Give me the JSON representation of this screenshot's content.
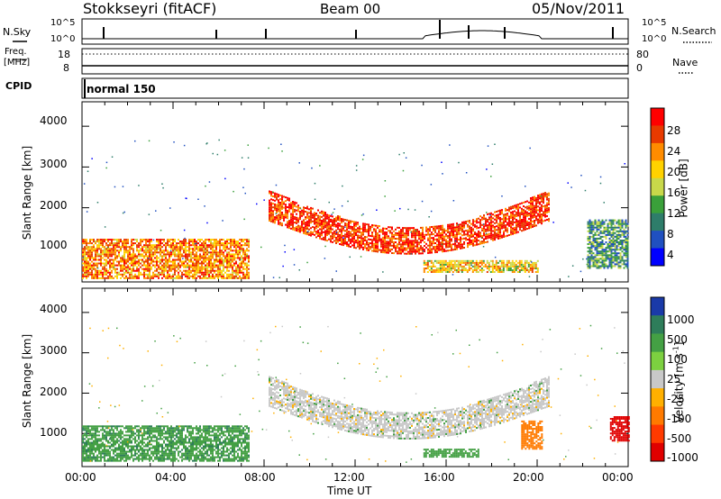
{
  "header": {
    "radar": "Stokkseyri (fitACF)",
    "beam": "Beam 00",
    "date": "05/Nov/2011"
  },
  "noise_panel": {
    "left_label": "N.Sky",
    "left_tick_hi": "10^5",
    "left_tick_lo": "10^0",
    "right_tick_hi": "10^5",
    "right_tick_lo": "10^0",
    "right_label": "N.Search"
  },
  "freq_panel": {
    "left_label_1": "Freq.",
    "left_label_2": "[MHz]",
    "left_tick_hi": "18",
    "left_tick_lo": "8",
    "right_tick_hi": "80",
    "right_tick_lo": "0",
    "right_label": "Nave"
  },
  "cpid_panel": {
    "label": "CPID",
    "mode": "normal 150"
  },
  "power_panel": {
    "ylabel": "Slant Range [km]",
    "yticks": [
      "4000",
      "3000",
      "2000",
      "1000"
    ],
    "colorbar_label": "Power [dB]",
    "colorbar_ticks": [
      "28",
      "24",
      "20",
      "16",
      "12",
      "8",
      "4"
    ],
    "colorbar_colors": [
      "#ff0000",
      "#e83a00",
      "#ff8c00",
      "#ffd200",
      "#c8d84a",
      "#3aa03a",
      "#2e7d6a",
      "#2050c0",
      "#0000ff"
    ]
  },
  "velocity_panel": {
    "ylabel": "Slant Range [km]",
    "yticks": [
      "4000",
      "3000",
      "2000",
      "1000"
    ],
    "colorbar_label": "Velocity [m s",
    "colorbar_label_sup": "-1",
    "colorbar_label_end": "]",
    "colorbar_ticks": [
      "1000",
      "500",
      "100",
      "25",
      "-25",
      "-100",
      "-500",
      "-1000"
    ],
    "colorbar_colors": [
      "#1a3aa8",
      "#2e7d5a",
      "#44a044",
      "#7cd040",
      "#c8c8c8",
      "#ffb000",
      "#ff7a00",
      "#ff3a00",
      "#e00000"
    ]
  },
  "x_axis": {
    "ticks": [
      "00:00",
      "04:00",
      "08:00",
      "12:00",
      "16:00",
      "20:00",
      "00:00"
    ],
    "label": "Time UT"
  },
  "chart_data": {
    "type": "heatmap",
    "x_range_hours": [
      0,
      24
    ],
    "y_range_km": [
      180,
      4600
    ],
    "panels": [
      {
        "name": "Power",
        "units": "dB",
        "color_range": [
          0,
          30
        ],
        "features": [
          {
            "from_h": 0.0,
            "to_h": 7.3,
            "range_km": [
              250,
              1200
            ],
            "value": 22
          },
          {
            "from_h": 8.2,
            "to_h": 20.5,
            "range_km": [
              800,
              2400
            ],
            "value": 26
          },
          {
            "from_h": 15.0,
            "to_h": 20.0,
            "range_km": [
              400,
              700
            ],
            "value": 18
          },
          {
            "from_h": 22.2,
            "to_h": 24.0,
            "range_km": [
              500,
              1700
            ],
            "value": 10
          }
        ]
      },
      {
        "name": "Velocity",
        "units": "m/s",
        "color_range": [
          -1000,
          1000
        ],
        "features": [
          {
            "from_h": 0.0,
            "to_h": 7.3,
            "range_km": [
              300,
              1200
            ],
            "value": 80
          },
          {
            "from_h": 8.2,
            "to_h": 20.5,
            "range_km": [
              800,
              2400
            ],
            "value": 0
          },
          {
            "from_h": 15.0,
            "to_h": 17.4,
            "range_km": [
              400,
              600
            ],
            "value": 60
          },
          {
            "from_h": 19.3,
            "to_h": 20.2,
            "range_km": [
              600,
              1300
            ],
            "value": -400
          },
          {
            "from_h": 23.2,
            "to_h": 24.0,
            "range_km": [
              800,
              1400
            ],
            "value": -900
          }
        ]
      }
    ]
  }
}
